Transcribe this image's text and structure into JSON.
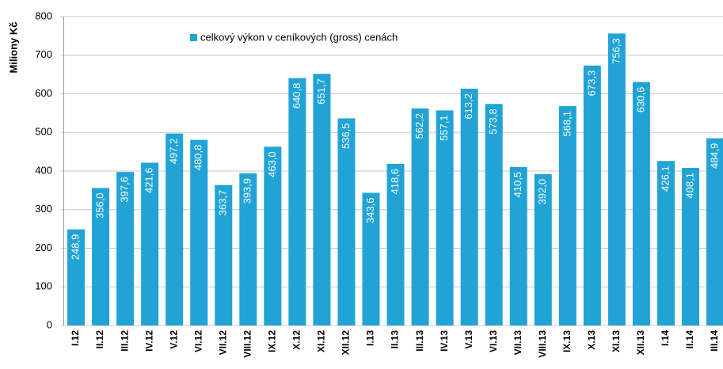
{
  "chart_data": {
    "type": "bar",
    "y_label": "Miliony Kč",
    "categories": [
      "I.12",
      "II.12",
      "III.12",
      "IV.12",
      "V.12",
      "VI.12",
      "VII.12",
      "VIII.12",
      "IX.12",
      "X.12",
      "XI.12",
      "XII.12",
      "I.13",
      "II.13",
      "III.13",
      "IV.13",
      "V.13",
      "VI.13",
      "VII.13",
      "VIII.13",
      "IX.13",
      "X.13",
      "XI.13",
      "XII.13",
      "I.14",
      "II.14",
      "III.14"
    ],
    "series": [
      {
        "name": "celkový výkon v ceníkových (gross) cenách",
        "color": "#21a3d6",
        "values": [
          248.9,
          356.0,
          397.6,
          421.6,
          497.2,
          480.8,
          363.7,
          393.9,
          463.0,
          640.8,
          651.7,
          536.5,
          343.6,
          418.6,
          562.2,
          557.1,
          613.2,
          573.8,
          410.5,
          392.0,
          568.1,
          673.3,
          756.3,
          630.6,
          426.1,
          408.1,
          484.9
        ],
        "value_labels": [
          "248,9",
          "356,0",
          "397,6",
          "421,6",
          "497,2",
          "480,8",
          "363,7",
          "393,9",
          "463,0",
          "640,8",
          "651,7",
          "536,5",
          "343,6",
          "418,6",
          "562,2",
          "557,1",
          "613,2",
          "573,8",
          "410,5",
          "392,0",
          "568,1",
          "673,3",
          "756,3",
          "630,6",
          "426,1",
          "408,1",
          "484,9"
        ]
      }
    ],
    "ylim": [
      0,
      800
    ],
    "yticks": [
      0,
      100,
      200,
      300,
      400,
      500,
      600,
      700,
      800
    ],
    "grid": true,
    "legend": "top"
  }
}
